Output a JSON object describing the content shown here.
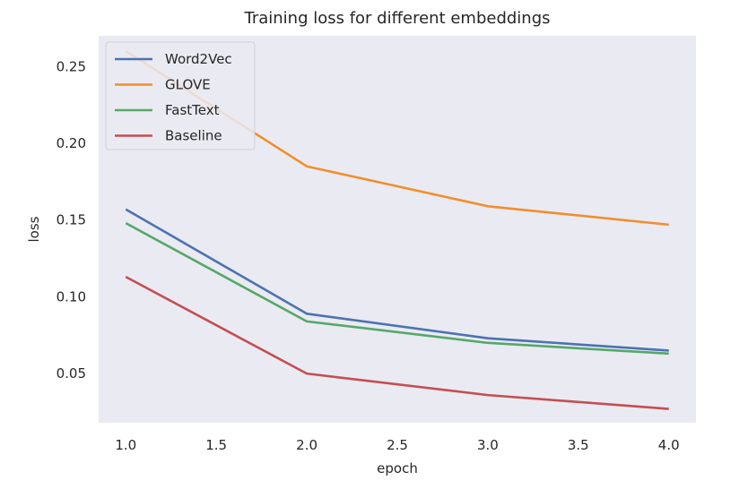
{
  "chart_data": {
    "type": "line",
    "title": "Training loss for different embeddings",
    "xlabel": "epoch",
    "ylabel": "loss",
    "x": [
      1.0,
      2.0,
      3.0,
      4.0
    ],
    "xticks": [
      "1.0",
      "1.5",
      "2.0",
      "2.5",
      "3.0",
      "3.5",
      "4.0"
    ],
    "yticks": [
      "0.05",
      "0.10",
      "0.15",
      "0.20",
      "0.25"
    ],
    "xlim": [
      0.85,
      4.15
    ],
    "ylim": [
      0.018,
      0.27
    ],
    "grid": false,
    "legend_position": "top-left",
    "background_color": "#eaeaf2",
    "series": [
      {
        "name": "Word2Vec",
        "color": "#4c72b0",
        "values": [
          0.157,
          0.089,
          0.073,
          0.065
        ]
      },
      {
        "name": "GLOVE",
        "color": "#f28e2b",
        "values": [
          0.26,
          0.185,
          0.159,
          0.147
        ]
      },
      {
        "name": "FastText",
        "color": "#55a868",
        "values": [
          0.148,
          0.084,
          0.07,
          0.063
        ]
      },
      {
        "name": "Baseline",
        "color": "#c44e52",
        "values": [
          0.113,
          0.05,
          0.036,
          0.027
        ]
      }
    ]
  }
}
